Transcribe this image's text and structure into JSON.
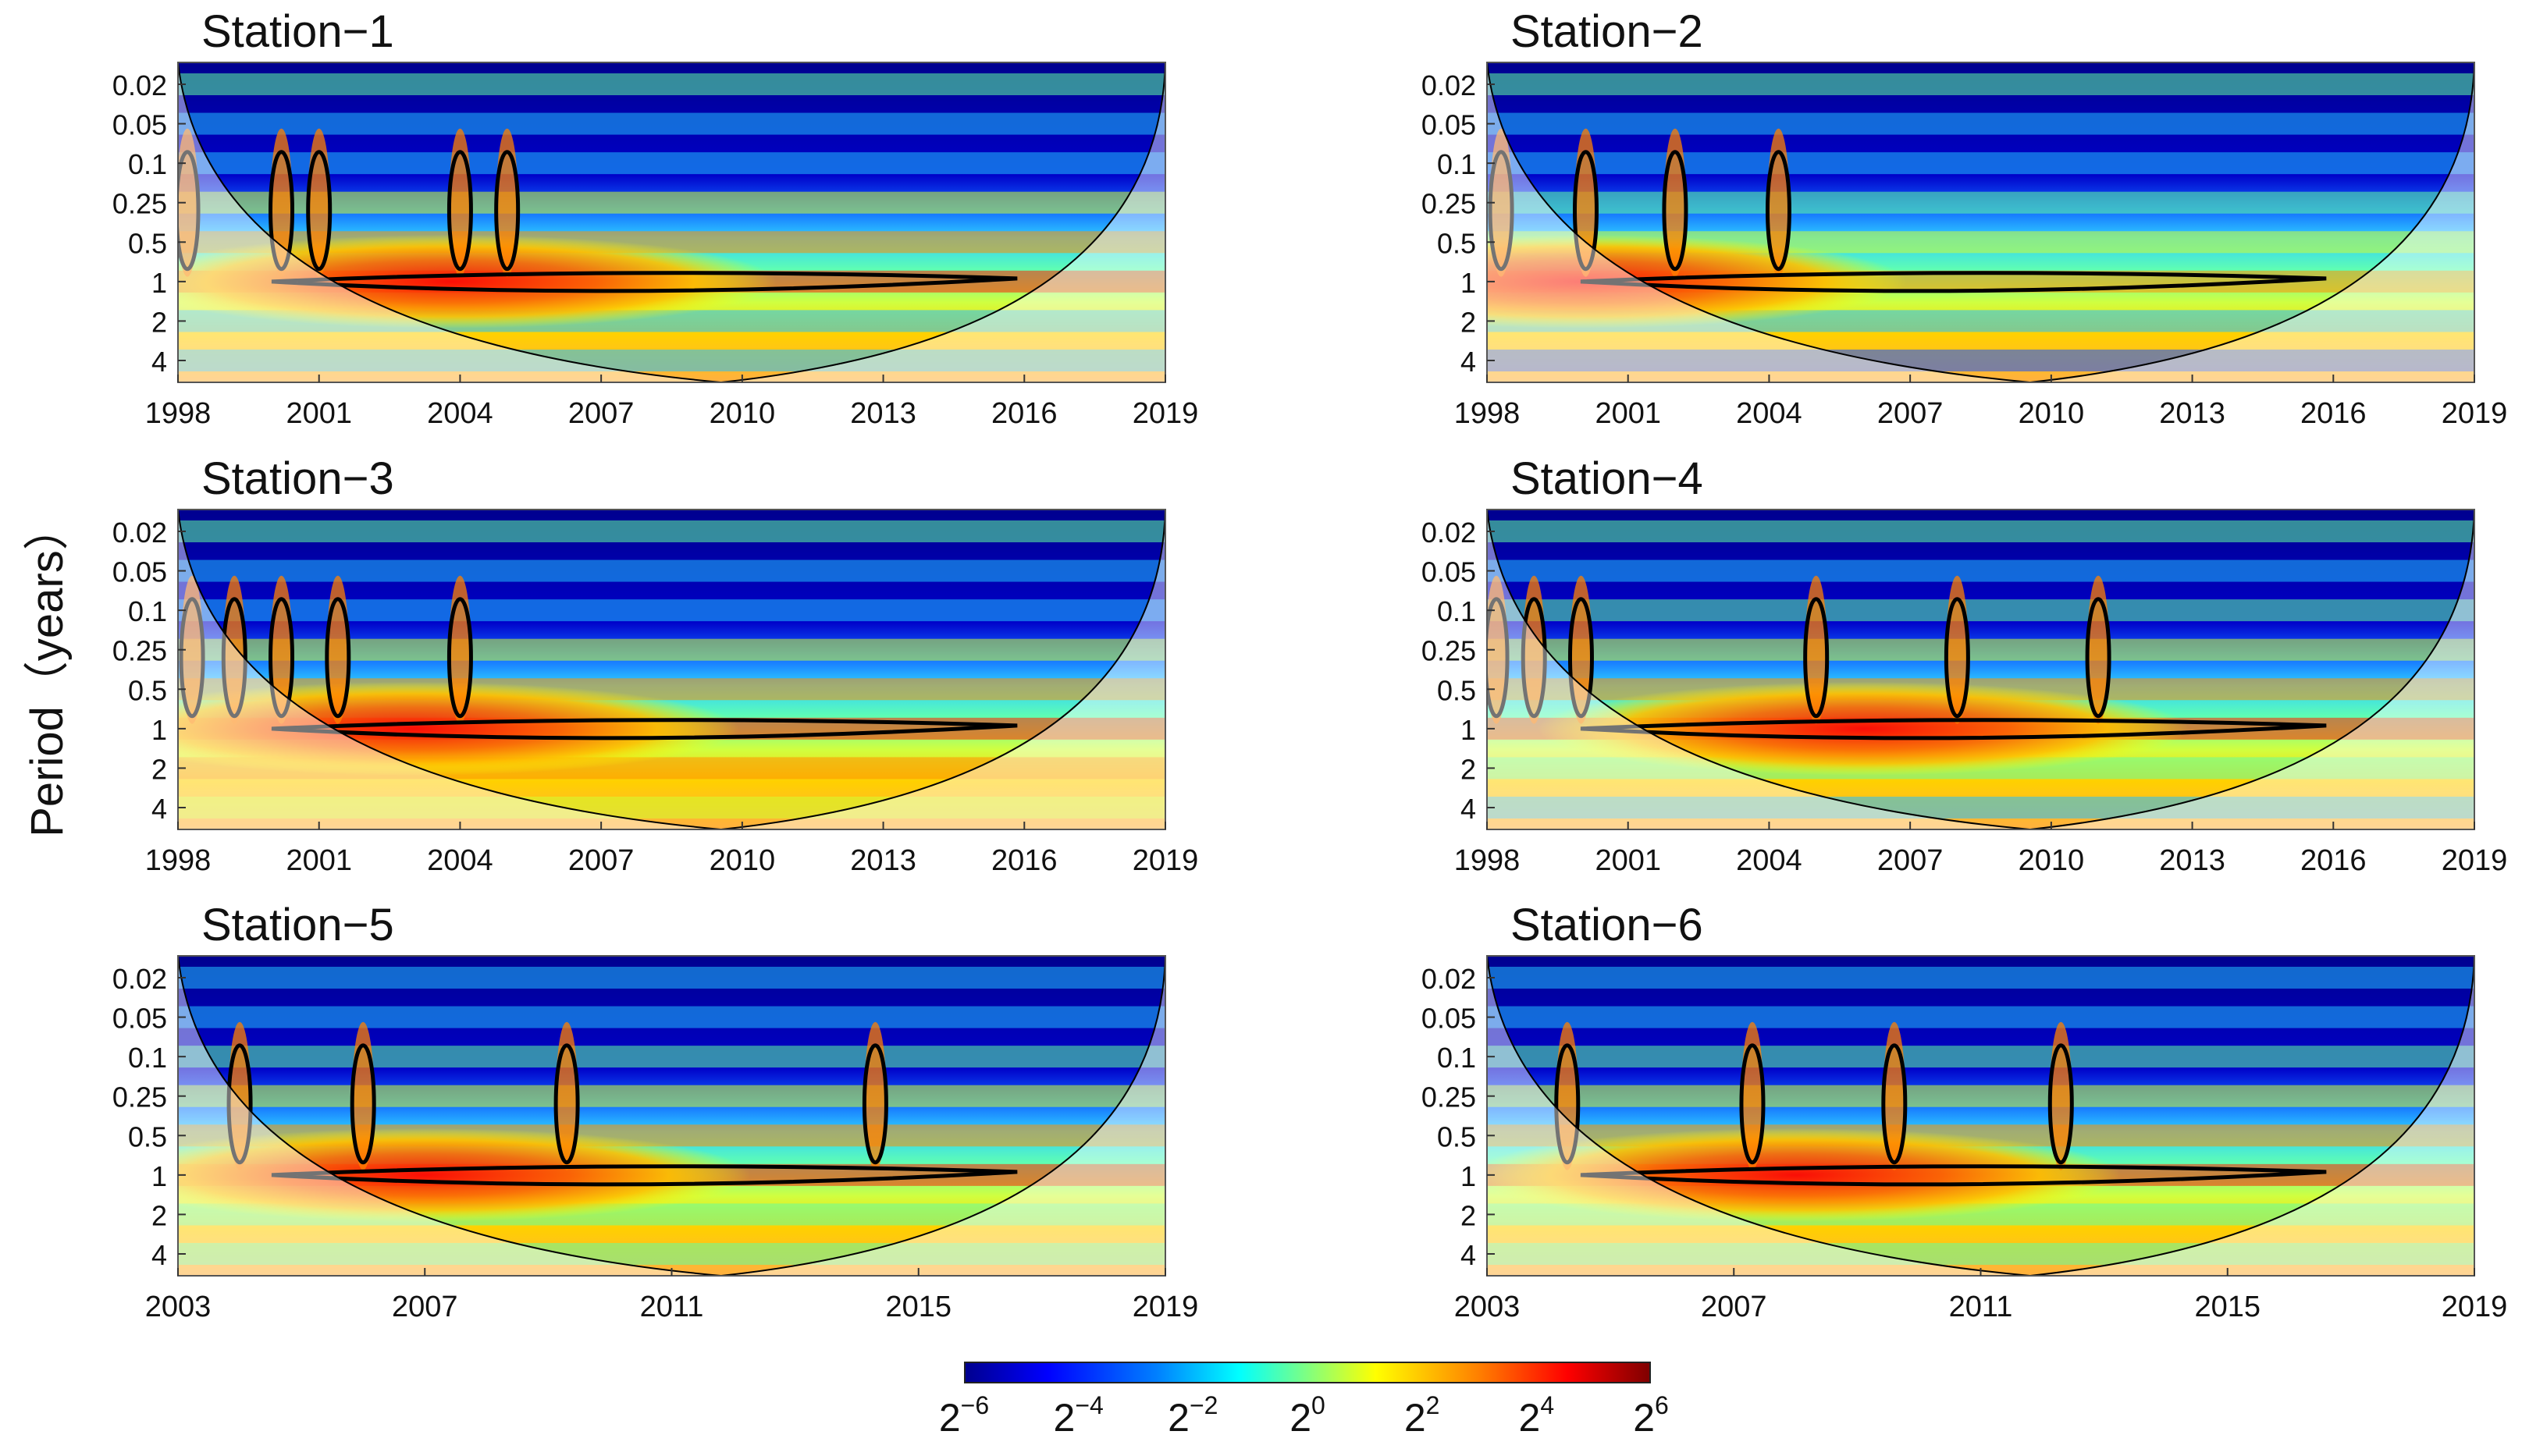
{
  "figure": {
    "ylabel": "Period（years）"
  },
  "colors": {
    "background_low": "#00008f",
    "cone_fill": "#ffffff",
    "contour": "#000000"
  },
  "colorbar": {
    "base": "2",
    "exponents": [
      "−6",
      "−4",
      "−2",
      "0",
      "2",
      "4",
      "6"
    ],
    "exponent_values": [
      -6,
      -4,
      -2,
      0,
      2,
      4,
      6
    ],
    "colormap": "jet"
  },
  "chart_data": [
    {
      "type": "heatmap",
      "title": "Station−1",
      "ylabel": "Period（years）",
      "xlim": [
        1998,
        2019
      ],
      "x_ticks": [
        "1998",
        "2001",
        "2004",
        "2007",
        "2010",
        "2013",
        "2016",
        "2019"
      ],
      "x_tick_values": [
        1998,
        2001,
        2004,
        2007,
        2010,
        2013,
        2016,
        2019
      ],
      "y_ticks": [
        "0.02",
        "0.05",
        "0.1",
        "0.25",
        "0.5",
        "1",
        "2",
        "4"
      ],
      "y_tick_values": [
        0.02,
        0.05,
        0.1,
        0.25,
        0.5,
        1,
        2,
        4
      ],
      "band_strength": [
        3,
        2,
        2,
        4,
        5,
        6,
        2,
        2
      ],
      "spikes": [
        1998.2,
        2000.2,
        2001.0,
        2004.0,
        2005.0
      ],
      "hot_center": {
        "x": 2003.8,
        "period": 1
      }
    },
    {
      "type": "heatmap",
      "title": "Station−2",
      "ylabel": "Period（years）",
      "xlim": [
        1998,
        2019
      ],
      "x_ticks": [
        "1998",
        "2001",
        "2004",
        "2007",
        "2010",
        "2013",
        "2016",
        "2019"
      ],
      "x_tick_values": [
        1998,
        2001,
        2004,
        2007,
        2010,
        2013,
        2016,
        2019
      ],
      "y_ticks": [
        "0.02",
        "0.05",
        "0.1",
        "0.25",
        "0.5",
        "1",
        "2",
        "4"
      ],
      "y_tick_values": [
        0.02,
        0.05,
        0.1,
        0.25,
        0.5,
        1,
        2,
        4
      ],
      "band_strength": [
        3,
        2,
        2,
        3,
        4,
        5,
        2,
        1
      ],
      "spikes": [
        1998.3,
        2000.1,
        2002.0,
        2004.2
      ],
      "hot_center": {
        "x": 2000.0,
        "period": 1
      }
    },
    {
      "type": "heatmap",
      "title": "Station−3",
      "ylabel": "Period（years）",
      "xlim": [
        1998,
        2019
      ],
      "x_ticks": [
        "1998",
        "2001",
        "2004",
        "2007",
        "2010",
        "2013",
        "2016",
        "2019"
      ],
      "x_tick_values": [
        1998,
        2001,
        2004,
        2007,
        2010,
        2013,
        2016,
        2019
      ],
      "y_ticks": [
        "0.02",
        "0.05",
        "0.1",
        "0.25",
        "0.5",
        "1",
        "2",
        "4"
      ],
      "y_tick_values": [
        0.02,
        0.05,
        0.1,
        0.25,
        0.5,
        1,
        2,
        4
      ],
      "band_strength": [
        3,
        2,
        2,
        4,
        5,
        6,
        5,
        4
      ],
      "spikes": [
        1998.3,
        1999.2,
        2000.2,
        2001.4,
        2004.0
      ],
      "hot_center": {
        "x": 2003.0,
        "period": 1
      }
    },
    {
      "type": "heatmap",
      "title": "Station−4",
      "ylabel": "Period（years）",
      "xlim": [
        1998,
        2019
      ],
      "x_ticks": [
        "1998",
        "2001",
        "2004",
        "2007",
        "2010",
        "2013",
        "2016",
        "2019"
      ],
      "x_tick_values": [
        1998,
        2001,
        2004,
        2007,
        2010,
        2013,
        2016,
        2019
      ],
      "y_ticks": [
        "0.02",
        "0.05",
        "0.1",
        "0.25",
        "0.5",
        "1",
        "2",
        "4"
      ],
      "y_tick_values": [
        0.02,
        0.05,
        0.1,
        0.25,
        0.5,
        1,
        2,
        4
      ],
      "band_strength": [
        3,
        2,
        3,
        4,
        5,
        6,
        3,
        2
      ],
      "spikes": [
        1998.2,
        1999.0,
        2000.0,
        2005.0,
        2008.0,
        2011.0
      ],
      "hot_center": {
        "x": 2006.0,
        "period": 1
      }
    },
    {
      "type": "heatmap",
      "title": "Station−5",
      "ylabel": "Period（years）",
      "xlim": [
        2003,
        2019
      ],
      "x_ticks": [
        "2003",
        "2007",
        "2011",
        "2015",
        "2019"
      ],
      "x_tick_values": [
        2003,
        2007,
        2011,
        2015,
        2019
      ],
      "y_ticks": [
        "0.02",
        "0.05",
        "0.1",
        "0.25",
        "0.5",
        "1",
        "2",
        "4"
      ],
      "y_tick_values": [
        0.02,
        0.05,
        0.1,
        0.25,
        0.5,
        1,
        2,
        4
      ],
      "band_strength": [
        2,
        2,
        3,
        4,
        5,
        6,
        3,
        3
      ],
      "spikes": [
        2004.0,
        2006.0,
        2009.3,
        2014.3
      ],
      "hot_center": {
        "x": 2007.0,
        "period": 1
      }
    },
    {
      "type": "heatmap",
      "title": "Station−6",
      "ylabel": "Period（years）",
      "xlim": [
        2003,
        2019
      ],
      "x_ticks": [
        "2003",
        "2007",
        "2011",
        "2015",
        "2019"
      ],
      "x_tick_values": [
        2003,
        2007,
        2011,
        2015,
        2019
      ],
      "y_ticks": [
        "0.02",
        "0.05",
        "0.1",
        "0.25",
        "0.5",
        "1",
        "2",
        "4"
      ],
      "y_tick_values": [
        0.02,
        0.05,
        0.1,
        0.25,
        0.5,
        1,
        2,
        4
      ],
      "band_strength": [
        2,
        2,
        3,
        4,
        5,
        6,
        3,
        3
      ],
      "spikes": [
        2004.3,
        2007.3,
        2009.6,
        2012.3
      ],
      "hot_center": {
        "x": 2008.0,
        "period": 1
      }
    }
  ]
}
